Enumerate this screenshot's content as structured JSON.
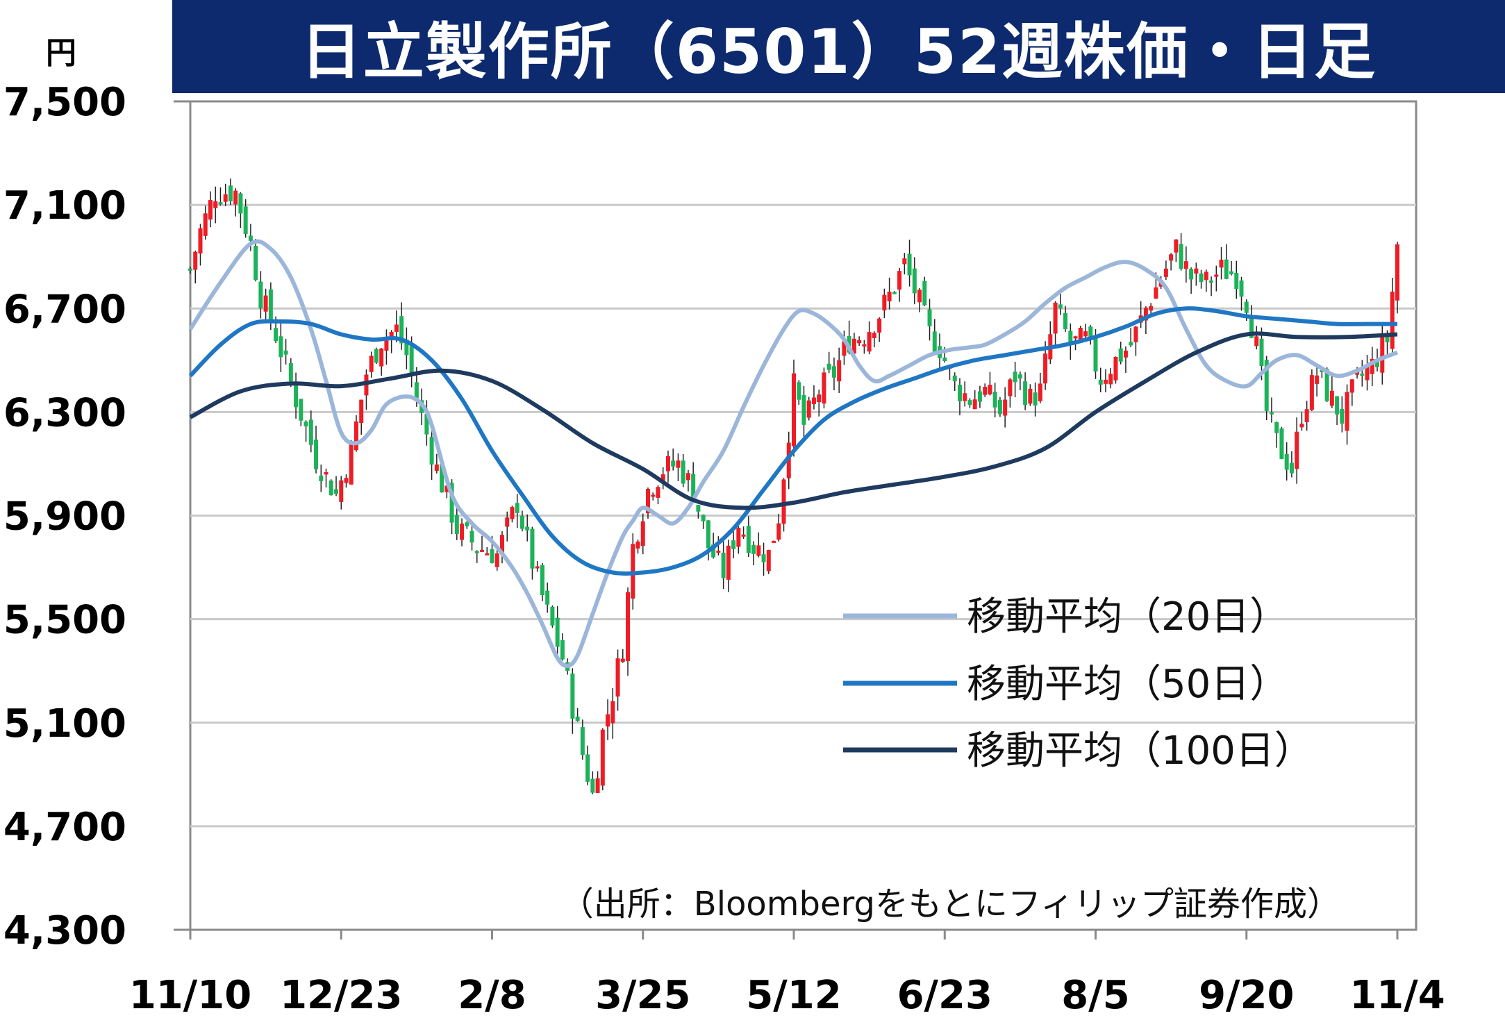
{
  "title": "日立製作所（6501）52週株価・日足",
  "unit": "円",
  "source_note": "（出所：Bloombergをもとにフィリップ証券作成）",
  "colors": {
    "title_bg": "#0d2a6e",
    "up": "#ee1c25",
    "down": "#1db25a",
    "ma20": "#9cb6da",
    "ma50": "#1f77c4",
    "ma100": "#1f3a5f",
    "grid": "#c9c9c9"
  },
  "chart_data": {
    "type": "candlestick",
    "title": "日立製作所（6501）52週株価・日足",
    "ylabel": "円",
    "ylim": [
      4300,
      7500
    ],
    "y_ticks": [
      "7,500",
      "7,100",
      "6,700",
      "6,300",
      "5,900",
      "5,500",
      "5,100",
      "4,700",
      "4,300"
    ],
    "y_tick_values": [
      7500,
      7100,
      6700,
      6300,
      5900,
      5500,
      5100,
      4700,
      4300
    ],
    "x_ticks": [
      "11/10",
      "12/23",
      "2/8",
      "3/25",
      "5/12",
      "6/23",
      "8/5",
      "9/20",
      "11/4"
    ],
    "x_tick_index": [
      0,
      30,
      60,
      90,
      120,
      150,
      180,
      210,
      240
    ],
    "n_days": 241,
    "grid": true,
    "legend_position": "center-right",
    "anchors": [
      [
        0,
        6850
      ],
      [
        2,
        7000
      ],
      [
        5,
        7150
      ],
      [
        9,
        7150
      ],
      [
        12,
        6950
      ],
      [
        14,
        6750
      ],
      [
        17,
        6600
      ],
      [
        21,
        6350
      ],
      [
        25,
        6120
      ],
      [
        29,
        5980
      ],
      [
        32,
        6150
      ],
      [
        35,
        6450
      ],
      [
        38,
        6580
      ],
      [
        41,
        6620
      ],
      [
        43,
        6520
      ],
      [
        46,
        6280
      ],
      [
        49,
        6080
      ],
      [
        53,
        5850
      ],
      [
        57,
        5780
      ],
      [
        61,
        5750
      ],
      [
        65,
        5950
      ],
      [
        68,
        5720
      ],
      [
        71,
        5520
      ],
      [
        74,
        5350
      ],
      [
        78,
        4980
      ],
      [
        80,
        4820
      ],
      [
        82,
        5060
      ],
      [
        84,
        5220
      ],
      [
        86,
        5400
      ],
      [
        88,
        5780
      ],
      [
        91,
        6000
      ],
      [
        94,
        6080
      ],
      [
        97,
        6100
      ],
      [
        100,
        6000
      ],
      [
        103,
        5780
      ],
      [
        106,
        5680
      ],
      [
        109,
        5870
      ],
      [
        112,
        5780
      ],
      [
        115,
        5750
      ],
      [
        117,
        5900
      ],
      [
        120,
        6400
      ],
      [
        122,
        6250
      ],
      [
        125,
        6380
      ],
      [
        128,
        6450
      ],
      [
        131,
        6580
      ],
      [
        134,
        6600
      ],
      [
        137,
        6680
      ],
      [
        139,
        6750
      ],
      [
        142,
        6870
      ],
      [
        145,
        6720
      ],
      [
        147,
        6600
      ],
      [
        149,
        6550
      ],
      [
        152,
        6400
      ],
      [
        155,
        6350
      ],
      [
        158,
        6380
      ],
      [
        161,
        6300
      ],
      [
        164,
        6440
      ],
      [
        167,
        6350
      ],
      [
        169,
        6380
      ],
      [
        172,
        6700
      ],
      [
        175,
        6560
      ],
      [
        178,
        6580
      ],
      [
        181,
        6430
      ],
      [
        184,
        6500
      ],
      [
        187,
        6560
      ],
      [
        190,
        6700
      ],
      [
        193,
        6820
      ],
      [
        196,
        6930
      ],
      [
        199,
        6820
      ],
      [
        202,
        6800
      ],
      [
        205,
        6850
      ],
      [
        208,
        6830
      ],
      [
        210,
        6730
      ],
      [
        212,
        6550
      ],
      [
        214,
        6300
      ],
      [
        216,
        6180
      ],
      [
        219,
        6080
      ],
      [
        221,
        6300
      ],
      [
        224,
        6450
      ],
      [
        226,
        6380
      ],
      [
        229,
        6280
      ],
      [
        232,
        6420
      ],
      [
        235,
        6480
      ],
      [
        238,
        6580
      ],
      [
        240,
        6950
      ]
    ],
    "series": [
      {
        "name": "移動平均（20日）",
        "color": "#9cb6da",
        "points": [
          [
            0,
            6620
          ],
          [
            6,
            6800
          ],
          [
            12,
            6950
          ],
          [
            16,
            6930
          ],
          [
            20,
            6820
          ],
          [
            24,
            6620
          ],
          [
            27,
            6420
          ],
          [
            30,
            6220
          ],
          [
            33,
            6180
          ],
          [
            36,
            6230
          ],
          [
            39,
            6330
          ],
          [
            43,
            6360
          ],
          [
            46,
            6330
          ],
          [
            48,
            6250
          ],
          [
            52,
            5980
          ],
          [
            56,
            5870
          ],
          [
            60,
            5800
          ],
          [
            64,
            5700
          ],
          [
            67,
            5600
          ],
          [
            70,
            5480
          ],
          [
            73,
            5350
          ],
          [
            75,
            5320
          ],
          [
            77,
            5360
          ],
          [
            80,
            5520
          ],
          [
            83,
            5680
          ],
          [
            86,
            5820
          ],
          [
            88,
            5880
          ],
          [
            90,
            5930
          ],
          [
            93,
            5900
          ],
          [
            96,
            5870
          ],
          [
            99,
            5930
          ],
          [
            102,
            6030
          ],
          [
            106,
            6150
          ],
          [
            110,
            6320
          ],
          [
            114,
            6480
          ],
          [
            118,
            6620
          ],
          [
            121,
            6690
          ],
          [
            124,
            6680
          ],
          [
            127,
            6640
          ],
          [
            130,
            6580
          ],
          [
            133,
            6480
          ],
          [
            136,
            6420
          ],
          [
            139,
            6440
          ],
          [
            143,
            6480
          ],
          [
            147,
            6520
          ],
          [
            151,
            6540
          ],
          [
            155,
            6550
          ],
          [
            158,
            6560
          ],
          [
            162,
            6600
          ],
          [
            166,
            6650
          ],
          [
            170,
            6720
          ],
          [
            174,
            6780
          ],
          [
            178,
            6820
          ],
          [
            182,
            6860
          ],
          [
            186,
            6880
          ],
          [
            190,
            6850
          ],
          [
            194,
            6780
          ],
          [
            198,
            6620
          ],
          [
            202,
            6480
          ],
          [
            206,
            6420
          ],
          [
            210,
            6400
          ],
          [
            213,
            6450
          ],
          [
            216,
            6500
          ],
          [
            220,
            6520
          ],
          [
            224,
            6480
          ],
          [
            228,
            6440
          ],
          [
            232,
            6460
          ],
          [
            236,
            6500
          ],
          [
            240,
            6530
          ]
        ]
      },
      {
        "name": "移動平均（50日）",
        "color": "#1f77c4",
        "points": [
          [
            0,
            6440
          ],
          [
            6,
            6560
          ],
          [
            12,
            6640
          ],
          [
            18,
            6650
          ],
          [
            24,
            6640
          ],
          [
            30,
            6600
          ],
          [
            36,
            6580
          ],
          [
            42,
            6580
          ],
          [
            48,
            6500
          ],
          [
            54,
            6350
          ],
          [
            60,
            6150
          ],
          [
            66,
            5980
          ],
          [
            72,
            5820
          ],
          [
            78,
            5720
          ],
          [
            84,
            5680
          ],
          [
            90,
            5680
          ],
          [
            96,
            5700
          ],
          [
            102,
            5750
          ],
          [
            108,
            5850
          ],
          [
            114,
            6000
          ],
          [
            120,
            6150
          ],
          [
            126,
            6270
          ],
          [
            132,
            6340
          ],
          [
            138,
            6390
          ],
          [
            144,
            6430
          ],
          [
            150,
            6470
          ],
          [
            156,
            6500
          ],
          [
            162,
            6520
          ],
          [
            168,
            6540
          ],
          [
            174,
            6560
          ],
          [
            180,
            6590
          ],
          [
            186,
            6630
          ],
          [
            192,
            6680
          ],
          [
            198,
            6700
          ],
          [
            204,
            6690
          ],
          [
            210,
            6670
          ],
          [
            216,
            6660
          ],
          [
            222,
            6650
          ],
          [
            228,
            6640
          ],
          [
            234,
            6640
          ],
          [
            240,
            6640
          ]
        ]
      },
      {
        "name": "移動平均（100日）",
        "color": "#1f3a5f",
        "points": [
          [
            0,
            6280
          ],
          [
            10,
            6380
          ],
          [
            20,
            6410
          ],
          [
            30,
            6400
          ],
          [
            40,
            6430
          ],
          [
            50,
            6460
          ],
          [
            60,
            6420
          ],
          [
            70,
            6310
          ],
          [
            80,
            6180
          ],
          [
            90,
            6080
          ],
          [
            100,
            5960
          ],
          [
            110,
            5930
          ],
          [
            120,
            5950
          ],
          [
            130,
            5990
          ],
          [
            140,
            6020
          ],
          [
            150,
            6050
          ],
          [
            160,
            6090
          ],
          [
            170,
            6160
          ],
          [
            180,
            6300
          ],
          [
            190,
            6420
          ],
          [
            200,
            6530
          ],
          [
            210,
            6600
          ],
          [
            220,
            6590
          ],
          [
            230,
            6590
          ],
          [
            240,
            6600
          ]
        ]
      }
    ]
  }
}
